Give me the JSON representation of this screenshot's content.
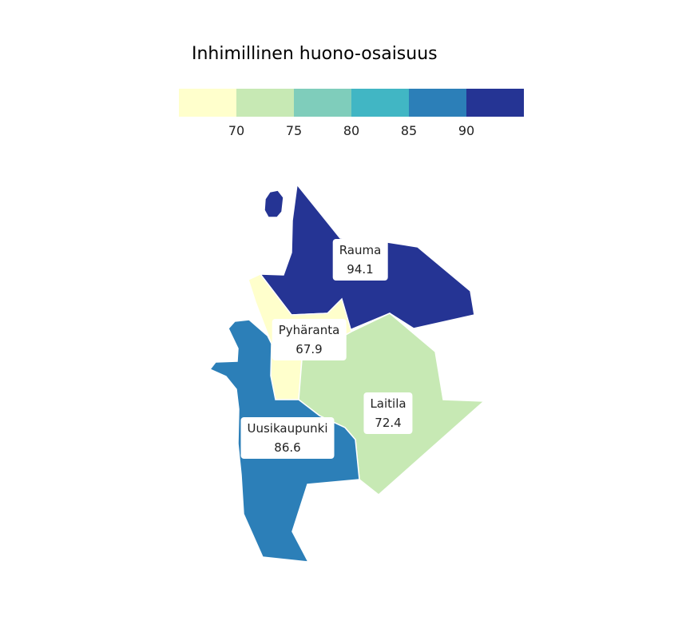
{
  "legend": {
    "title": "Inhimillinen huono-osaisuus",
    "colors": [
      "#ffffcc",
      "#c7e9b4",
      "#7fcdbb",
      "#41b6c4",
      "#2c7fb8",
      "#253494"
    ],
    "ticks": [
      "70",
      "75",
      "80",
      "85",
      "90"
    ]
  },
  "regions": [
    {
      "name": "Rauma",
      "value": "94.1",
      "color": "#253494"
    },
    {
      "name": "Pyhäranta",
      "value": "67.9",
      "color": "#ffffcc"
    },
    {
      "name": "Laitila",
      "value": "72.4",
      "color": "#c7e9b4"
    },
    {
      "name": "Uusikaupunki",
      "value": "86.6",
      "color": "#2c7fb8"
    }
  ]
}
